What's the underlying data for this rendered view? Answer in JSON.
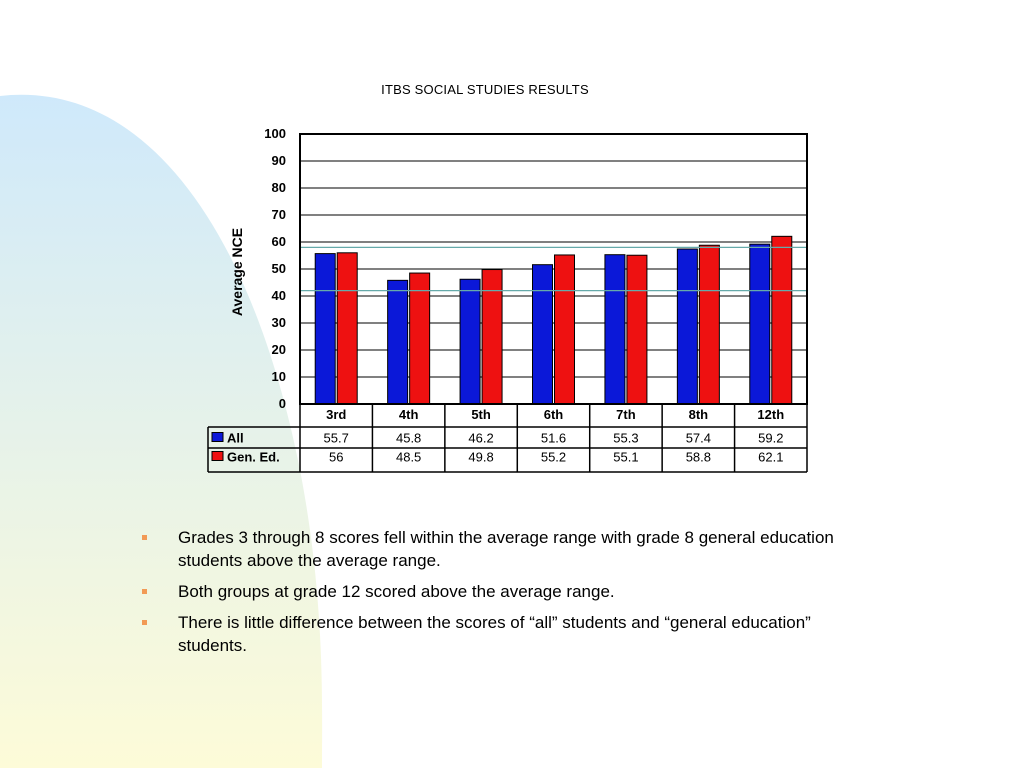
{
  "colors": {
    "series_all": "#0b18d8",
    "series_gened": "#ee1111",
    "bullet": "#f29a55",
    "ref_line": "#66aaaa",
    "bg_top": "#cfe9fb",
    "bg_bottom": "#fdfbd8"
  },
  "chart_data": {
    "type": "bar",
    "title": "ITBS SOCIAL STUDIES RESULTS",
    "ylabel": "Average NCE",
    "xlabel": "",
    "ylim": [
      0,
      100
    ],
    "yticks": [
      0,
      10,
      20,
      30,
      40,
      50,
      60,
      70,
      80,
      90,
      100
    ],
    "categories": [
      "3rd",
      "4th",
      "5th",
      "6th",
      "7th",
      "8th",
      "12th"
    ],
    "series": [
      {
        "name": "All",
        "values": [
          55.7,
          45.8,
          46.2,
          51.6,
          55.3,
          57.4,
          59.2
        ]
      },
      {
        "name": "Gen. Ed.",
        "values": [
          56,
          48.5,
          49.8,
          55.2,
          55.1,
          58.8,
          62.1
        ]
      }
    ],
    "table_rows": [
      {
        "label": "All",
        "cells": [
          "55.7",
          "45.8",
          "46.2",
          "51.6",
          "55.3",
          "57.4",
          "59.2"
        ]
      },
      {
        "label": "Gen. Ed.",
        "cells": [
          "56",
          "48.5",
          "49.8",
          "55.2",
          "55.1",
          "58.8",
          "62.1"
        ]
      }
    ],
    "reference_lines": [
      42,
      58
    ],
    "grid": true,
    "legend": "data-table-left"
  },
  "bullets": [
    "Grades 3 through 8 scores fell within the average range with grade 8 general education students above the average range.",
    "Both groups at grade 12 scored above the average range.",
    "There is little difference between the scores of “all” students and “general education” students."
  ]
}
